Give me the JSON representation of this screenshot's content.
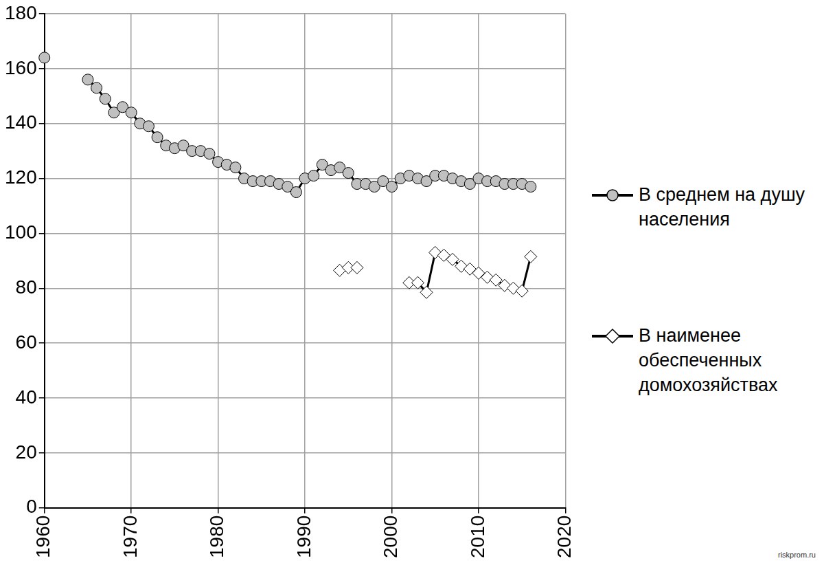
{
  "chart_data": {
    "type": "line",
    "x": [
      1960,
      1961,
      1962,
      1963,
      1964,
      1965,
      1966,
      1967,
      1968,
      1969,
      1970,
      1971,
      1972,
      1973,
      1974,
      1975,
      1976,
      1977,
      1978,
      1979,
      1980,
      1981,
      1982,
      1983,
      1984,
      1985,
      1986,
      1987,
      1988,
      1989,
      1990,
      1991,
      1992,
      1993,
      1994,
      1995,
      1996,
      1997,
      1998,
      1999,
      2000,
      2001,
      2002,
      2003,
      2004,
      2005,
      2006,
      2007,
      2008,
      2009,
      2010,
      2011,
      2012,
      2013,
      2014,
      2015,
      2016
    ],
    "series": [
      {
        "name": "В среднем на душу населения",
        "color": "#c0c0c0",
        "marker": "circle",
        "values": [
          164,
          null,
          null,
          null,
          null,
          156,
          153,
          149,
          144,
          146,
          144,
          140,
          139,
          135,
          132,
          131,
          132,
          130,
          130,
          129,
          126,
          125,
          124,
          120,
          119,
          119,
          119,
          118,
          117,
          115,
          120,
          121,
          125,
          123,
          124,
          122,
          118,
          118,
          117,
          119,
          117,
          120,
          121,
          120,
          119,
          121,
          121,
          120,
          119,
          118,
          120,
          119,
          119,
          118,
          118,
          118,
          117
        ]
      },
      {
        "name": "В наименее обеспеченных домохозяйствах",
        "color": "#ffffff",
        "marker": "diamond",
        "values": [
          null,
          null,
          null,
          null,
          null,
          null,
          null,
          null,
          null,
          null,
          null,
          null,
          null,
          null,
          null,
          null,
          null,
          null,
          null,
          null,
          null,
          null,
          null,
          null,
          null,
          null,
          null,
          null,
          null,
          null,
          null,
          null,
          null,
          null,
          86.5,
          87.5,
          87.5,
          null,
          null,
          null,
          null,
          null,
          82,
          82,
          78.5,
          93,
          92,
          90.5,
          88,
          87,
          85.5,
          84,
          83,
          81,
          80,
          79,
          91.5
        ]
      }
    ],
    "xlim": [
      1960,
      2020
    ],
    "xticks": [
      1960,
      1970,
      1980,
      1990,
      2000,
      2010,
      2020
    ],
    "ylim": [
      0,
      180
    ],
    "yticks": [
      0,
      20,
      40,
      60,
      80,
      100,
      120,
      140,
      160,
      180
    ],
    "grid": true,
    "legend": "right",
    "annotations": [
      "riskprom.ru"
    ]
  }
}
